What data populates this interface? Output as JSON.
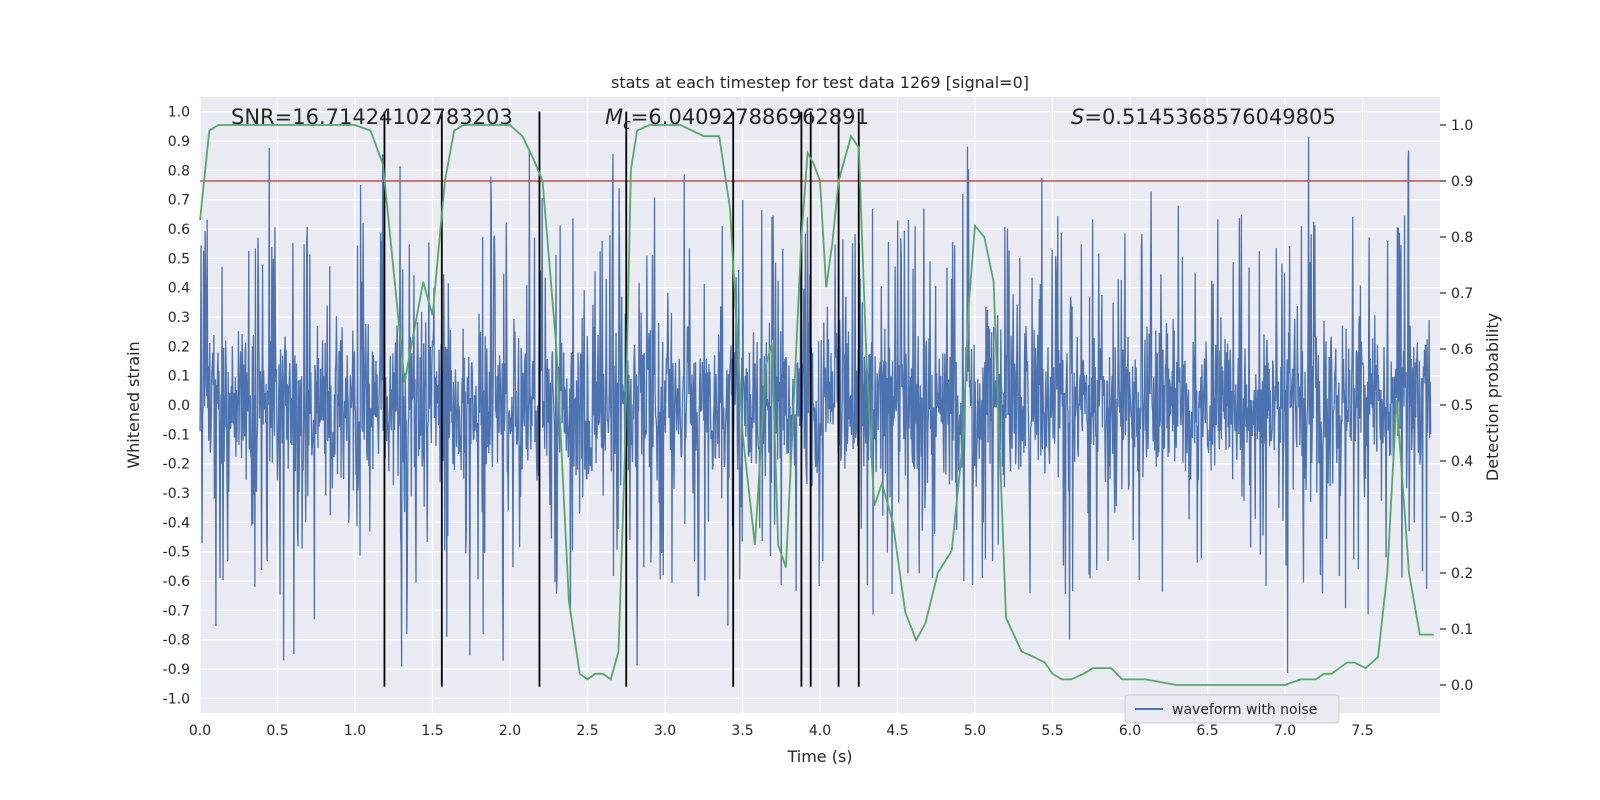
{
  "chart_data": {
    "type": "line",
    "title": "stats at each timestep for test data 1269 [signal=0]",
    "xlabel": "Time (s)",
    "ylabel_left": "Whitened strain",
    "ylabel_right": "Detection probability",
    "xlim": [
      0.0,
      8.0
    ],
    "ylim_left": [
      -1.05,
      1.05
    ],
    "ylim_right": [
      -0.05,
      1.05
    ],
    "x_ticks": [
      "0.0",
      "0.5",
      "1.0",
      "1.5",
      "2.0",
      "2.5",
      "3.0",
      "3.5",
      "4.0",
      "4.5",
      "5.0",
      "5.5",
      "6.0",
      "6.5",
      "7.0",
      "7.5"
    ],
    "y_ticks_left": [
      "1.0",
      "0.9",
      "0.8",
      "0.7",
      "0.6",
      "0.5",
      "0.4",
      "0.3",
      "0.2",
      "0.1",
      "0.0",
      "-0.1",
      "-0.2",
      "-0.3",
      "-0.4",
      "-0.5",
      "-0.6",
      "-0.7",
      "-0.8",
      "-0.9",
      "-1.0"
    ],
    "y_ticks_right": [
      "1.0",
      "0.9",
      "0.8",
      "0.7",
      "0.6",
      "0.5",
      "0.4",
      "0.3",
      "0.2",
      "0.1",
      "0.0"
    ],
    "annotations": {
      "snr": "SNR=16.71424102783203",
      "mc_symbol": "M",
      "mc_subscript": "c",
      "mc_value": "=6.040927886962891",
      "s_symbol": "S",
      "s_value": "=0.5145368576049805"
    },
    "threshold": {
      "value": 0.9,
      "axis": "right",
      "color": "#c44e52"
    },
    "vertical_lines": [
      1.19,
      1.56,
      2.19,
      2.75,
      3.44,
      3.88,
      3.94,
      4.12,
      4.25
    ],
    "series": [
      {
        "name": "waveform with noise",
        "axis": "left",
        "color": "#4c72b0",
        "kind": "noise",
        "samples": 2400,
        "core_amplitude": 0.46,
        "spike_max": 0.92,
        "seed": 1269
      },
      {
        "name": "detection probability",
        "axis": "right",
        "color": "#55a868",
        "x": [
          0.0,
          0.06,
          0.12,
          0.3,
          0.6,
          0.9,
          1.0,
          1.1,
          1.18,
          1.26,
          1.32,
          1.4,
          1.44,
          1.5,
          1.58,
          1.64,
          1.7,
          1.8,
          2.0,
          2.08,
          2.15,
          2.21,
          2.3,
          2.38,
          2.45,
          2.5,
          2.55,
          2.6,
          2.65,
          2.7,
          2.74,
          2.78,
          2.82,
          2.9,
          3.0,
          3.1,
          3.25,
          3.35,
          3.42,
          3.5,
          3.58,
          3.65,
          3.69,
          3.73,
          3.78,
          3.83,
          3.88,
          3.92,
          3.96,
          4.0,
          4.04,
          4.08,
          4.12,
          4.2,
          4.25,
          4.3,
          4.35,
          4.4,
          4.47,
          4.55,
          4.62,
          4.68,
          4.76,
          4.85,
          4.92,
          4.96,
          5.0,
          5.06,
          5.12,
          5.2,
          5.3,
          5.38,
          5.45,
          5.5,
          5.56,
          5.62,
          5.7,
          5.76,
          5.82,
          5.88,
          5.95,
          6.0,
          6.1,
          6.3,
          6.6,
          6.9,
          7.0,
          7.1,
          7.15,
          7.2,
          7.25,
          7.3,
          7.35,
          7.4,
          7.45,
          7.52,
          7.6,
          7.66,
          7.72,
          7.8,
          7.87,
          7.96
        ],
        "y": [
          0.83,
          0.99,
          1.0,
          1.0,
          1.0,
          1.0,
          1.0,
          0.99,
          0.93,
          0.71,
          0.54,
          0.66,
          0.72,
          0.66,
          0.9,
          0.99,
          1.0,
          1.0,
          1.0,
          0.98,
          0.94,
          0.9,
          0.6,
          0.15,
          0.02,
          0.01,
          0.02,
          0.02,
          0.01,
          0.06,
          0.4,
          0.92,
          0.99,
          1.0,
          1.0,
          1.0,
          0.98,
          0.98,
          0.85,
          0.45,
          0.25,
          0.57,
          0.61,
          0.25,
          0.21,
          0.5,
          0.8,
          0.95,
          0.93,
          0.9,
          0.71,
          0.79,
          0.9,
          0.98,
          0.96,
          0.58,
          0.32,
          0.36,
          0.29,
          0.13,
          0.08,
          0.11,
          0.2,
          0.24,
          0.43,
          0.68,
          0.82,
          0.8,
          0.72,
          0.12,
          0.06,
          0.05,
          0.04,
          0.02,
          0.01,
          0.01,
          0.02,
          0.03,
          0.03,
          0.03,
          0.01,
          0.01,
          0.01,
          0.0,
          0.0,
          0.0,
          0.0,
          0.01,
          0.01,
          0.01,
          0.02,
          0.02,
          0.03,
          0.04,
          0.04,
          0.03,
          0.05,
          0.2,
          0.51,
          0.2,
          0.09,
          0.09
        ]
      }
    ],
    "legend": [
      "waveform with noise"
    ],
    "legend_loc": "lower-right",
    "grid": true
  }
}
